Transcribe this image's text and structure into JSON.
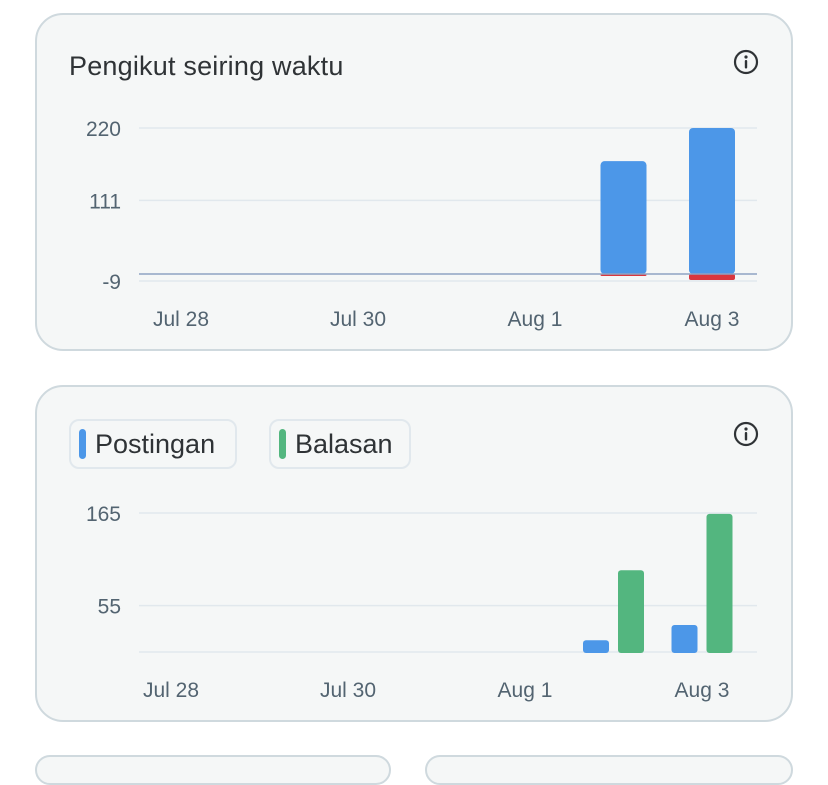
{
  "charts": [
    {
      "title": "Pengikut seiring waktu",
      "info_icon": "info-circle-icon"
    },
    {
      "info_icon": "info-circle-icon",
      "legend": [
        {
          "label": "Postingan",
          "color": "#4c97e8"
        },
        {
          "label": "Balasan",
          "color": "#53b67f"
        }
      ]
    }
  ],
  "chart_data": [
    {
      "type": "bar",
      "title": "Pengikut seiring waktu",
      "x_tick_labels": [
        "Jul 28",
        "Jul 30",
        "Aug 1",
        "Aug 3"
      ],
      "y_tick_labels": [
        "220",
        "111",
        "-9"
      ],
      "ylim": [
        -9,
        220
      ],
      "grid": true,
      "bars": [
        {
          "x": "Aug 2",
          "gain": 170,
          "loss": -3
        },
        {
          "x": "Aug 3",
          "gain": 220,
          "loss": -9
        }
      ],
      "colors": {
        "gain": "#4c97e8",
        "loss": "#d9363e"
      }
    },
    {
      "type": "bar",
      "x_tick_labels": [
        "Jul 28",
        "Jul 30",
        "Aug 1",
        "Aug 3"
      ],
      "y_tick_labels": [
        "165",
        "55"
      ],
      "ylim": [
        0,
        165
      ],
      "grid": true,
      "legend_position": "top-left",
      "categories": [
        "Aug 2",
        "Aug 3"
      ],
      "series": [
        {
          "name": "Postingan",
          "color": "#4c97e8",
          "values": [
            14,
            32
          ]
        },
        {
          "name": "Balasan",
          "color": "#53b67f",
          "values": [
            97,
            164
          ]
        }
      ]
    }
  ]
}
